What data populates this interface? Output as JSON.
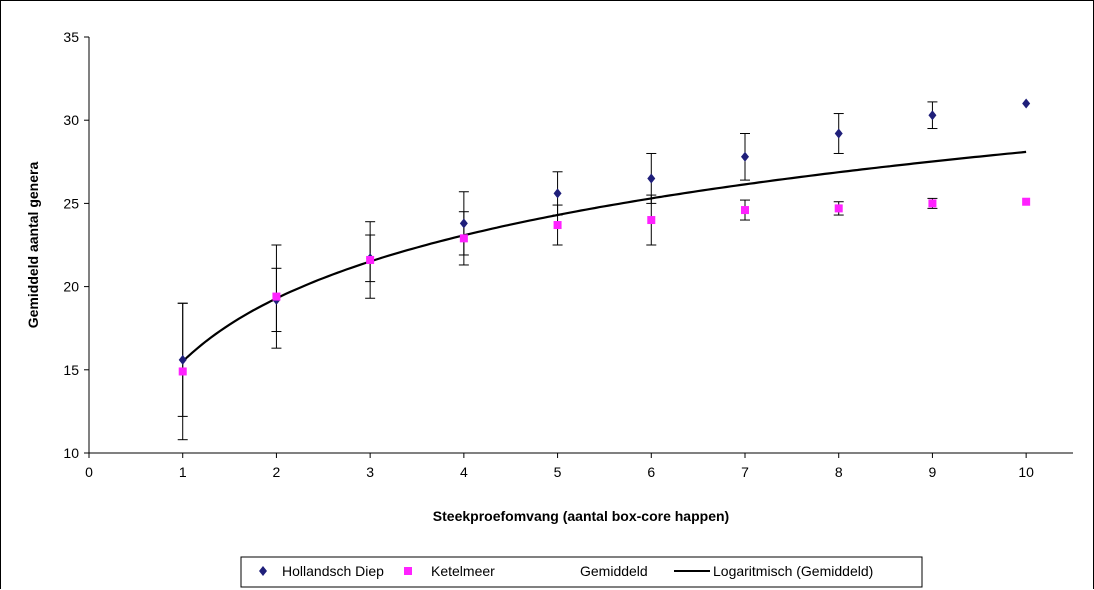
{
  "chart_data": {
    "type": "scatter",
    "title": "",
    "xlabel": "Steekproefomvang (aantal box-core happen)",
    "ylabel": "Gemiddeld aantal genera",
    "xlim": [
      0,
      10.5
    ],
    "ylim": [
      10,
      35
    ],
    "x_ticks": [
      "0",
      "1",
      "2",
      "3",
      "4",
      "5",
      "6",
      "7",
      "8",
      "9",
      "10"
    ],
    "y_ticks": [
      "10",
      "15",
      "20",
      "25",
      "30",
      "35"
    ],
    "grid": false,
    "legend_position": "bottom",
    "series": [
      {
        "name": "Hollandsch Diep",
        "marker": "diamond",
        "color": "#1f1f7a",
        "x": [
          1,
          2,
          3,
          4,
          5,
          6,
          7,
          8,
          9,
          10
        ],
        "y": [
          15.6,
          19.2,
          21.7,
          23.8,
          25.6,
          26.5,
          27.8,
          29.2,
          30.3,
          31.0
        ],
        "err": [
          3.4,
          1.9,
          1.4,
          1.9,
          1.3,
          1.5,
          1.4,
          1.2,
          0.8,
          0.0
        ]
      },
      {
        "name": "Ketelmeer",
        "marker": "square",
        "color": "#ff22ff",
        "x": [
          1,
          2,
          3,
          4,
          5,
          6,
          7,
          8,
          9,
          10
        ],
        "y": [
          14.9,
          19.4,
          21.6,
          22.9,
          23.7,
          24.0,
          24.6,
          24.7,
          25.0,
          25.1
        ],
        "err": [
          4.1,
          3.1,
          2.3,
          1.6,
          1.2,
          1.5,
          0.6,
          0.4,
          0.3,
          0.0
        ]
      },
      {
        "name": "Gemiddeld",
        "marker": "none",
        "color": "#000000",
        "x": [],
        "y": []
      },
      {
        "name": "Logaritmisch (Gemiddeld)",
        "type": "line",
        "color": "#000000",
        "formula": "y = 5.47*ln(x) + 15.5",
        "x": [
          1,
          1.5,
          2,
          2.5,
          3,
          4,
          5,
          6,
          7,
          8,
          9,
          10
        ],
        "y": [
          15.5,
          17.7,
          19.3,
          20.5,
          21.5,
          23.1,
          24.3,
          25.3,
          26.1,
          26.9,
          27.5,
          28.1
        ]
      }
    ]
  },
  "legend": {
    "items": [
      {
        "label": "Hollandsch Diep",
        "symbol": "diamond"
      },
      {
        "label": "Ketelmeer",
        "symbol": "square"
      },
      {
        "label": "Gemiddeld",
        "symbol": "none"
      },
      {
        "label": "Logaritmisch (Gemiddeld)",
        "symbol": "line"
      }
    ]
  }
}
